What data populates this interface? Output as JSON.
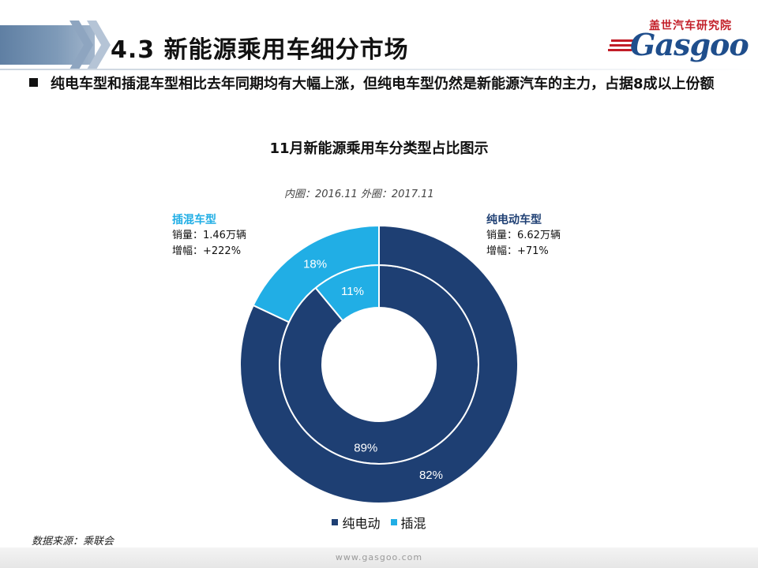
{
  "header": {
    "title": "4.3  新能源乘用车细分市场"
  },
  "logo": {
    "cn_text": "盖世汽车研究院",
    "en_text": "Gasgoo"
  },
  "bullet": {
    "text": "纯电车型和插混车型相比去年同期均有大幅上涨，但纯电车型仍然是新能源汽车的主力，占据8成以上份额"
  },
  "chart_data": {
    "type": "donut",
    "title": "11月新能源乘用车分类型占比图示",
    "ring_note": "内圈：2016.11   外圈：2017.11",
    "categories": [
      "纯电动",
      "插混"
    ],
    "colors": {
      "纯电动": "#1e3f73",
      "插混": "#21aee5"
    },
    "series": [
      {
        "name": "2016.11",
        "ring": "inner",
        "values": [
          89,
          11
        ],
        "labels": [
          "89%",
          "11%"
        ]
      },
      {
        "name": "2017.11",
        "ring": "outer",
        "values": [
          82,
          18
        ],
        "labels": [
          "82%",
          "18%"
        ]
      }
    ],
    "annotations": {
      "phev": {
        "title": "插混车型",
        "sales": "销量：1.46万辆",
        "growth": "增幅：+222%"
      },
      "bev": {
        "title": "纯电动车型",
        "sales": "销量：6.62万辆",
        "growth": "增幅：+71%"
      }
    },
    "legend": {
      "position": "bottom",
      "items": [
        "纯电动",
        "插混"
      ]
    }
  },
  "source": "数据来源：乘联会",
  "footer": {
    "url": "www.gasgoo.com"
  }
}
